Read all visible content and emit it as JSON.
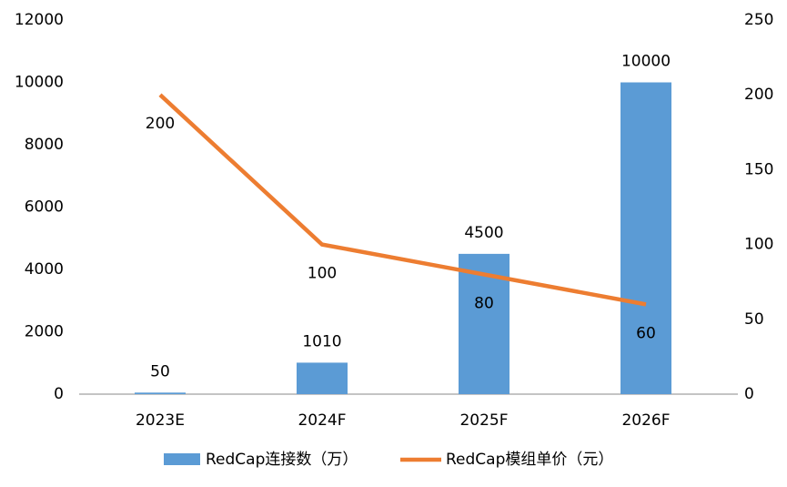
{
  "chart_data": {
    "type": "bar",
    "categories": [
      "2023E",
      "2024F",
      "2025F",
      "2026F"
    ],
    "series": [
      {
        "name": "RedCap连接数（万）",
        "type": "bar",
        "color": "#5b9bd5",
        "values": [
          50,
          1010,
          4500,
          10000
        ]
      },
      {
        "name": "RedCap模组单价（元）",
        "type": "line",
        "axis": "y2",
        "color": "#ed7d31",
        "values": [
          200,
          100,
          80,
          60
        ]
      }
    ],
    "ylim": [
      0,
      12000
    ],
    "yticks": [
      0,
      2000,
      4000,
      6000,
      8000,
      10000,
      12000
    ],
    "y2lim": [
      0,
      250
    ],
    "y2ticks": [
      0,
      50,
      100,
      150,
      200,
      250
    ],
    "grid": false,
    "legend": "bottom"
  }
}
